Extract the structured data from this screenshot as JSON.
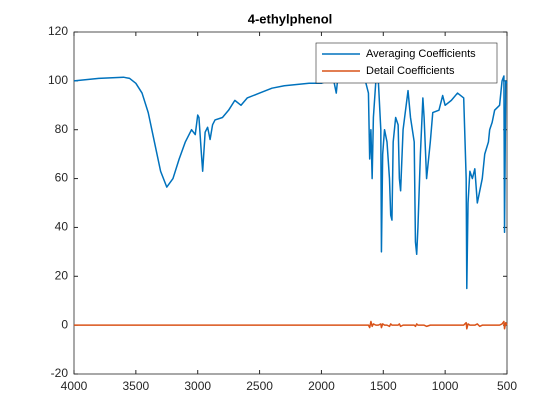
{
  "chart_data": {
    "type": "line",
    "title": "4-ethylphenol",
    "x": [
      4000,
      3800,
      3600,
      3550,
      3500,
      3450,
      3400,
      3350,
      3300,
      3250,
      3200,
      3150,
      3100,
      3050,
      3020,
      3000,
      2990,
      2970,
      2960,
      2940,
      2920,
      2900,
      2880,
      2860,
      2800,
      2750,
      2700,
      2650,
      2600,
      2500,
      2400,
      2300,
      2200,
      2100,
      2000,
      1950,
      1900,
      1880,
      1870,
      1800,
      1700,
      1650,
      1620,
      1610,
      1600,
      1590,
      1580,
      1560,
      1540,
      1520,
      1515,
      1505,
      1490,
      1470,
      1450,
      1440,
      1430,
      1420,
      1400,
      1380,
      1370,
      1360,
      1340,
      1300,
      1280,
      1250,
      1240,
      1230,
      1220,
      1200,
      1180,
      1170,
      1150,
      1120,
      1100,
      1050,
      1020,
      1000,
      950,
      900,
      850,
      830,
      825,
      815,
      800,
      780,
      760,
      740,
      720,
      700,
      680,
      650,
      640,
      620,
      600,
      560,
      540,
      525,
      520,
      510,
      500
    ],
    "series": [
      {
        "name": "Averaging Coefficients",
        "color": "#0072bd",
        "values": [
          100,
          101,
          101.5,
          101,
          99,
          95,
          87,
          75,
          63,
          56.5,
          60,
          68,
          75,
          80,
          78,
          86,
          85,
          70,
          63,
          79,
          81,
          76,
          82,
          84,
          85,
          88,
          92,
          90,
          93,
          95,
          97,
          98,
          98.5,
          99,
          99,
          100,
          100,
          95,
          100,
          100,
          101,
          101,
          95,
          68,
          80,
          60,
          85,
          100,
          100,
          80,
          30,
          70,
          80,
          75,
          60,
          45,
          43,
          75,
          85,
          82,
          60,
          55,
          80,
          96,
          85,
          75,
          34,
          29,
          40,
          70,
          93,
          85,
          60,
          75,
          87,
          88,
          94,
          90,
          92,
          95,
          93,
          60,
          15,
          50,
          63,
          60,
          64,
          50,
          55,
          60,
          70,
          75,
          80,
          83,
          88,
          90,
          100,
          102,
          38,
          100,
          99
        ]
      },
      {
        "name": "Detail Coefficients",
        "color": "#d95319",
        "values": [
          0,
          0,
          0,
          0,
          0,
          0,
          0,
          0,
          0,
          0,
          0,
          0,
          0,
          0,
          0,
          0,
          0,
          0,
          0,
          0,
          0,
          0,
          0,
          0,
          0,
          0,
          0,
          0,
          0,
          0,
          0,
          0,
          0,
          0,
          0,
          0,
          0,
          0,
          0,
          0,
          0,
          0,
          0,
          -1,
          1.5,
          -0.5,
          0.5,
          0,
          0,
          0.5,
          -1,
          0.5,
          0,
          0,
          -0.5,
          0.5,
          0,
          0,
          0,
          0,
          0.5,
          -0.5,
          0,
          0,
          0,
          0,
          -0.5,
          0.5,
          0,
          0,
          0,
          0,
          -0.5,
          0,
          0,
          0,
          0,
          0,
          0,
          0,
          0,
          1,
          -1.5,
          0.5,
          0,
          0,
          0,
          0.5,
          -0.5,
          0,
          0,
          0,
          0,
          0,
          0,
          0,
          0.5,
          1.5,
          -1.5,
          1,
          0
        ]
      }
    ],
    "xlim": [
      4000,
      500
    ],
    "xticks": [
      4000,
      3500,
      3000,
      2500,
      2000,
      1500,
      1000,
      500
    ],
    "ylim": [
      -20,
      120
    ],
    "yticks": [
      -20,
      0,
      20,
      40,
      60,
      80,
      100,
      120
    ],
    "grid": false,
    "legend": "northeast"
  }
}
